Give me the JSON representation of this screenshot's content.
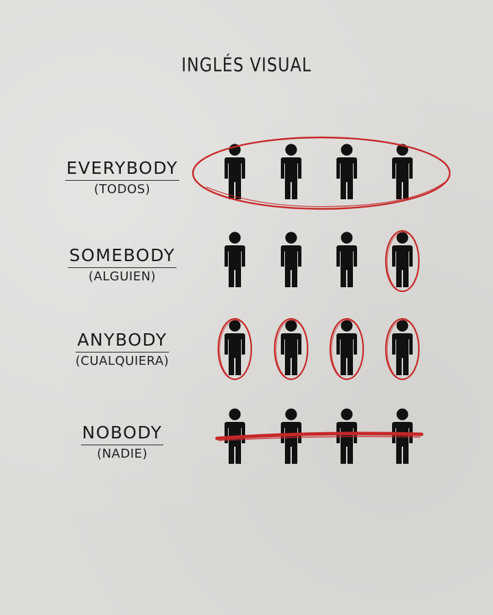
{
  "title": "INGLÉS VISUAL",
  "accent_color": "#c62828",
  "figure_color": "#111111",
  "figure_icon": "person-icon",
  "rows": [
    {
      "word": "EVERYBODY",
      "translation": "(TODOS)",
      "figures": 4,
      "mark": "group-circle",
      "marked": [
        1,
        1,
        1,
        1
      ]
    },
    {
      "word": "SOMEBODY",
      "translation": "(ALGUIEN)",
      "figures": 4,
      "mark": "single-circle",
      "marked": [
        0,
        0,
        0,
        1
      ]
    },
    {
      "word": "ANYBODY",
      "translation": "(CUALQUIERA)",
      "figures": 4,
      "mark": "each-circle",
      "marked": [
        1,
        1,
        1,
        1
      ]
    },
    {
      "word": "NOBODY",
      "translation": "(NADIE)",
      "figures": 4,
      "mark": "strike-line",
      "marked": [
        0,
        0,
        0,
        0
      ]
    }
  ]
}
